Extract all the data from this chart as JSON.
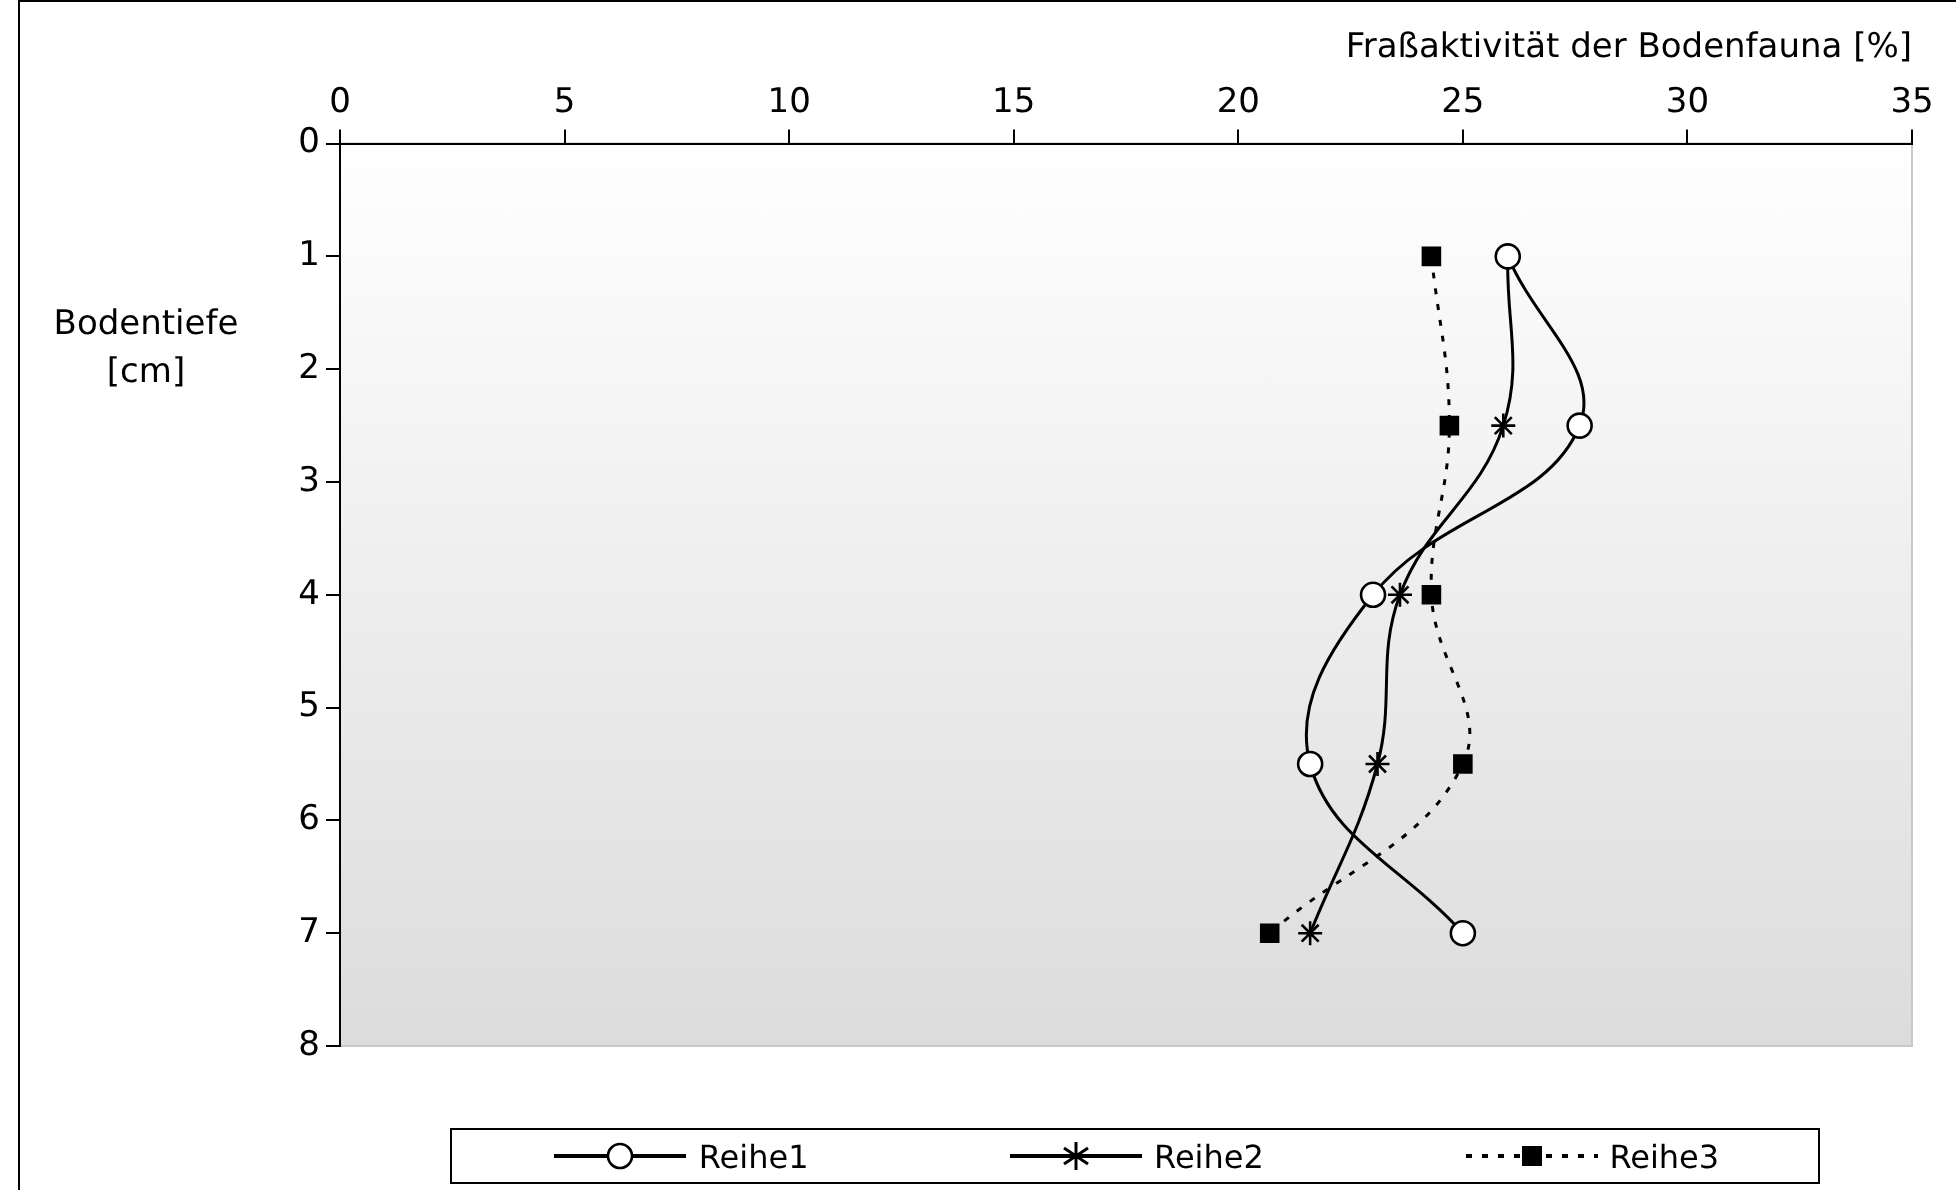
{
  "chart_data": {
    "type": "line",
    "xlabel": "Fraßaktivität der Bodenfauna [%]",
    "ylabel": "Bodentiefe [cm]",
    "xlim": [
      0,
      35
    ],
    "xticks": [
      0,
      5,
      10,
      15,
      20,
      25,
      30,
      35
    ],
    "ylim": [
      8,
      0
    ],
    "yticks": [
      0,
      1,
      2,
      3,
      4,
      5,
      6,
      7,
      8
    ],
    "grid": false,
    "legend": "bottom",
    "series": [
      {
        "name": "Reihe1",
        "color": "#000000",
        "marker": "circle",
        "line_style": "solid",
        "x": [
          26.0,
          27.6,
          23.0,
          21.6,
          25.0
        ],
        "values": [
          1,
          2.5,
          4,
          5.5,
          7
        ]
      },
      {
        "name": "Reihe2",
        "color": "#000000",
        "marker": "cross",
        "line_style": "solid",
        "x": [
          26.0,
          25.9,
          23.6,
          23.1,
          21.6
        ],
        "values": [
          1,
          2.5,
          4,
          5.5,
          7
        ]
      },
      {
        "name": "Reihe3",
        "color": "#000000",
        "marker": "square",
        "line_style": "dotted",
        "x": [
          24.3,
          24.7,
          24.3,
          25.0,
          20.7
        ],
        "values": [
          1,
          2.5,
          4,
          5.5,
          7
        ]
      }
    ]
  }
}
